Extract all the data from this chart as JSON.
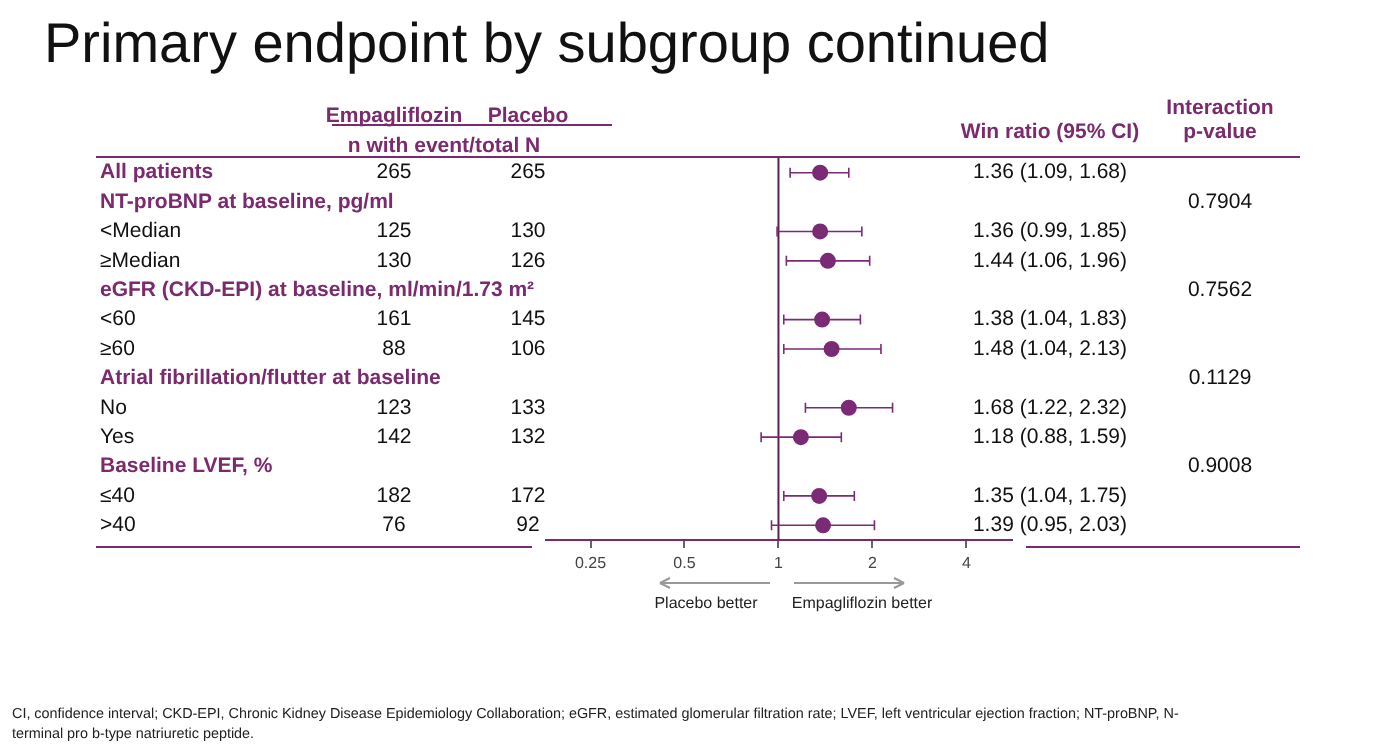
{
  "chart_data": {
    "type": "scatter",
    "orientation": "horizontal",
    "title": "Primary endpoint by subgroup continued",
    "categories": [
      "All patients",
      "NT-proBNP at baseline, pg/ml",
      "<Median",
      "≥Median",
      "eGFR (CKD-EPI) at baseline, ml/min/1.73 m²",
      "<60",
      "≥60",
      "Atrial fibrillation/flutter at baseline",
      "No",
      "Yes",
      "Baseline LVEF, %",
      "≤40",
      ">40"
    ],
    "series": [
      {
        "color": "#7b2a76",
        "values": [
          1.36,
          null,
          1.36,
          1.44,
          null,
          1.38,
          1.48,
          null,
          1.68,
          1.18,
          null,
          1.35,
          1.39
        ],
        "errors": [
          [
            1.09,
            1.68
          ],
          null,
          [
            0.99,
            1.85
          ],
          [
            1.06,
            1.96
          ],
          null,
          [
            1.04,
            1.83
          ],
          [
            1.04,
            2.13
          ],
          null,
          [
            1.22,
            2.32
          ],
          [
            0.88,
            1.59
          ],
          null,
          [
            1.04,
            1.75
          ],
          [
            0.95,
            2.03
          ]
        ],
        "value_labels": [
          "1.36 (1.09, 1.68)",
          null,
          "1.36 (0.99, 1.85)",
          "1.44 (1.06, 1.96)",
          null,
          "1.38 (1.04, 1.83)",
          "1.48 (1.04, 2.13)",
          null,
          "1.68 (1.22, 2.32)",
          "1.18 (0.88, 1.59)",
          null,
          "1.35 (1.04, 1.75)",
          "1.39 (0.95, 2.03)"
        ]
      }
    ],
    "log": "x",
    "xlim": [
      0.18,
      5.6
    ],
    "xticks": [
      0.25,
      0.5,
      1,
      2,
      4
    ],
    "grid": false,
    "legend": false,
    "marker": "circle",
    "ref_lines": [
      {
        "axis": "x",
        "value": 1,
        "color": "#5a1f52"
      }
    ],
    "annotations": [
      "Empagliflozin",
      "Placebo",
      "n with event/total N",
      "Win ratio (95% CI)",
      "Interaction p-value",
      "Placebo better",
      "Empagliflozin better",
      "CI, confidence interval; CKD-EPI, Chronic Kidney Disease Epidemiology Collaboration; eGFR, estimated glomerular filtration rate; LVEF, left ventricular ejection fraction; NT-proBNP, N-terminal pro b-type natriuretic peptide.",
      "265",
      "265",
      "0.7904",
      "125",
      "130",
      "130",
      "126",
      "0.7562",
      "161",
      "145",
      "88",
      "106",
      "0.1129",
      "123",
      "133",
      "142",
      "132",
      "0.9008",
      "182",
      "172",
      "76",
      "92"
    ]
  }
}
